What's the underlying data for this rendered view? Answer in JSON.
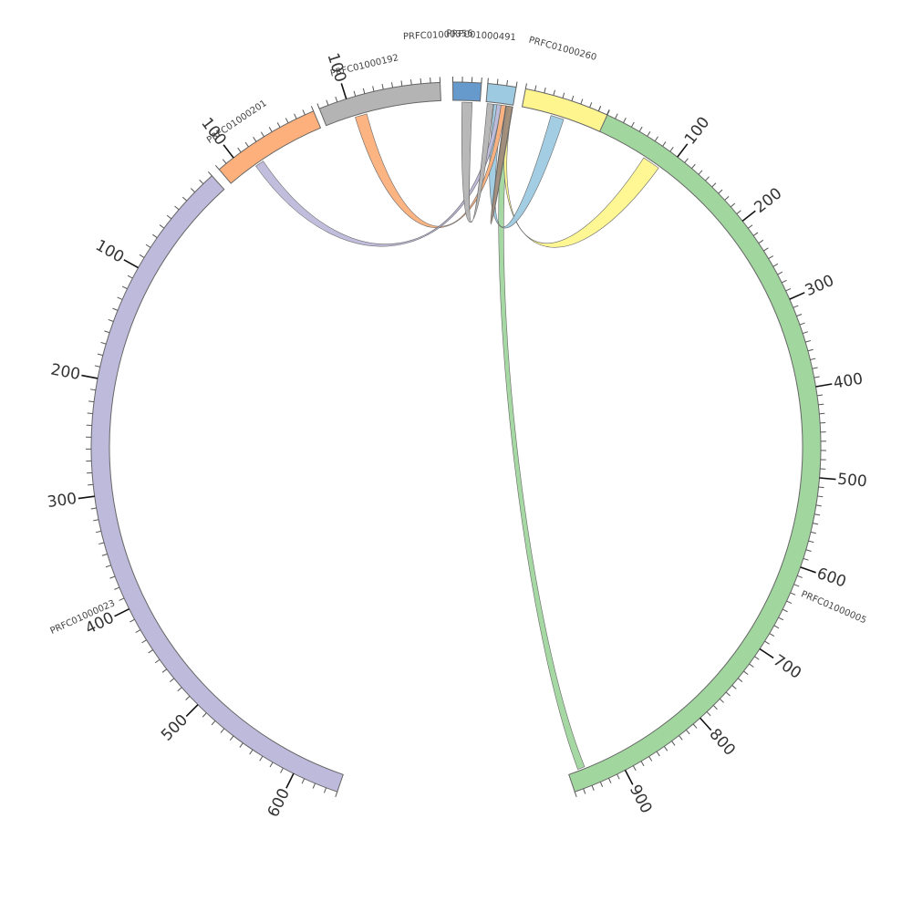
{
  "chart_data": {
    "type": "chord",
    "genome_unit": "kb",
    "contigs": [
      {
        "id": "PRFC01000005",
        "label": "PRFC01000005",
        "length": 960,
        "color": "#a1d69f",
        "ticks": [
          "100",
          "200",
          "300",
          "400",
          "500",
          "600",
          "700",
          "800",
          "900"
        ]
      },
      {
        "id": "PRFC01000023",
        "label": "PRFC01000023",
        "length": 640,
        "color": "#bebadb",
        "ticks": [
          "100",
          "200",
          "300",
          "400",
          "500",
          "600"
        ]
      },
      {
        "id": "PRFC01000201",
        "label": "PRFC01000201",
        "length": 120,
        "color": "#fdb07c",
        "ticks": [
          "100"
        ]
      },
      {
        "id": "PRFC01000192",
        "label": "PRFC01000192",
        "length": 130,
        "color": "#b4b4b4",
        "ticks": [
          "100"
        ]
      },
      {
        "id": "PRFC01000356",
        "label": "PRFC01000356",
        "length": 30,
        "color": "#6699cc",
        "ticks": []
      },
      {
        "id": "PRFC01000491",
        "label": "PRFC01000491",
        "length": 30,
        "color": "#9ecae1",
        "ticks": []
      },
      {
        "id": "PRFC01000260",
        "label": "PRFC01000260",
        "length": 90,
        "color": "#fff58e",
        "ticks": []
      }
    ],
    "links": [
      {
        "source": "PRFC01000491",
        "target": "PRFC01000005",
        "color": "#a1d69f"
      },
      {
        "source": "PRFC01000491",
        "target": "PRFC01000260",
        "color": "#fff58e"
      },
      {
        "source": "PRFC01000491",
        "target": "PRFC01000260",
        "color": "#9ecae1"
      },
      {
        "source": "PRFC01000491",
        "target": "PRFC01000192",
        "color": "#fdb07c"
      },
      {
        "source": "PRFC01000491",
        "target": "PRFC01000201",
        "color": "#bebadb"
      },
      {
        "source": "PRFC01000356",
        "target": "PRFC01000491",
        "color": "#b4b4b4"
      },
      {
        "source": "PRFC01000491",
        "target": "PRFC01000491",
        "color": "#a08b7a"
      }
    ]
  }
}
